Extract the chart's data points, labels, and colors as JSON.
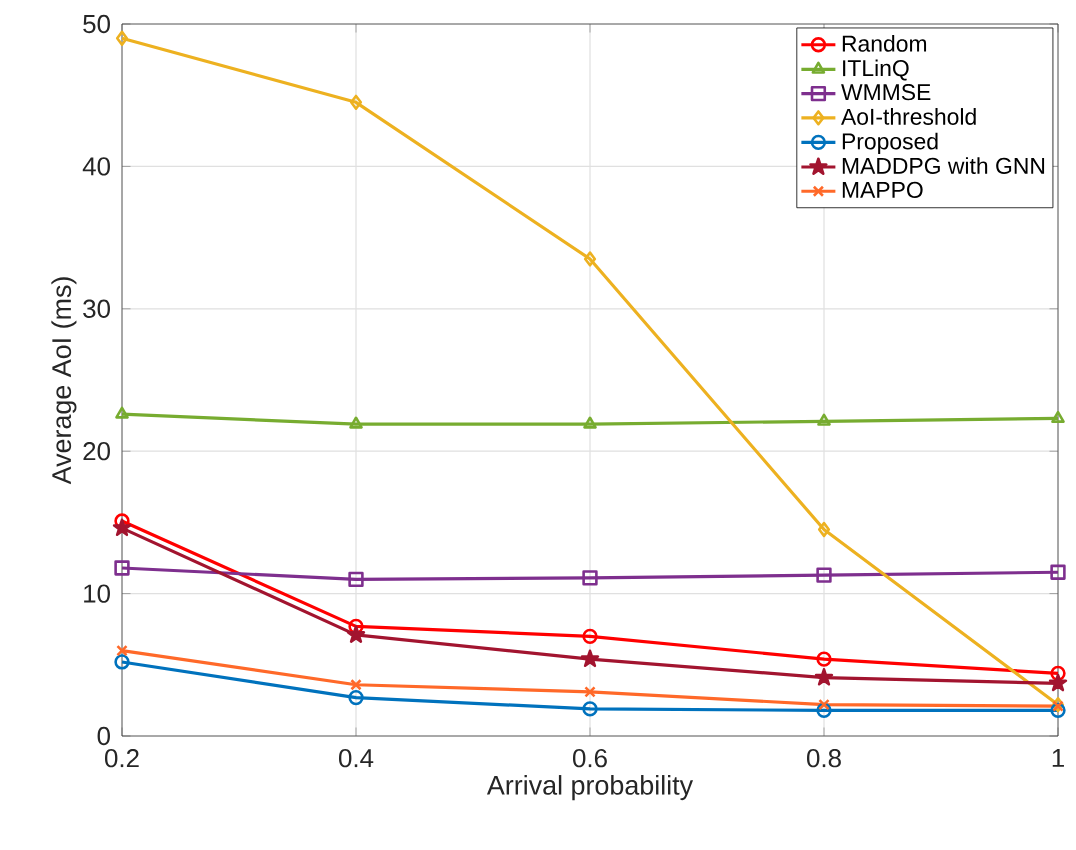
{
  "chart_data": {
    "type": "line",
    "xlabel": "Arrival probability",
    "ylabel": "Average AoI (ms)",
    "x": [
      0.2,
      0.4,
      0.6,
      0.8,
      1
    ],
    "xlim": [
      0.2,
      1
    ],
    "xticks": [
      0.2,
      0.4,
      0.6,
      0.8,
      1
    ],
    "ylim": [
      0,
      50
    ],
    "yticks": [
      0,
      10,
      20,
      30,
      40,
      50
    ],
    "grid": true,
    "legend": "top right",
    "line_style": "solid",
    "series": [
      {
        "name": "Random",
        "color": "#ff0000",
        "marker": "circle",
        "values": [
          15.1,
          7.7,
          7.0,
          5.4,
          4.4
        ]
      },
      {
        "name": "ITLinQ",
        "color": "#77ac30",
        "marker": "triangle",
        "values": [
          22.6,
          21.9,
          21.9,
          22.1,
          22.3
        ]
      },
      {
        "name": "WMMSE",
        "color": "#7e2f8e",
        "marker": "square",
        "values": [
          11.8,
          11.0,
          11.1,
          11.3,
          11.5
        ]
      },
      {
        "name": "AoI-threshold",
        "color": "#edb120",
        "marker": "diamond",
        "values": [
          49.0,
          44.5,
          33.5,
          14.5,
          2.2
        ]
      },
      {
        "name": "Proposed",
        "color": "#0072bd",
        "marker": "circle",
        "values": [
          5.2,
          2.7,
          1.9,
          1.8,
          1.8
        ]
      },
      {
        "name": "MADDPG with GNN",
        "color": "#a2142f",
        "marker": "star",
        "values": [
          14.6,
          7.1,
          5.4,
          4.1,
          3.7
        ]
      },
      {
        "name": "MAPPO",
        "color": "#ff6929",
        "marker": "cross",
        "values": [
          6.0,
          3.6,
          3.1,
          2.2,
          2.1
        ]
      }
    ]
  }
}
